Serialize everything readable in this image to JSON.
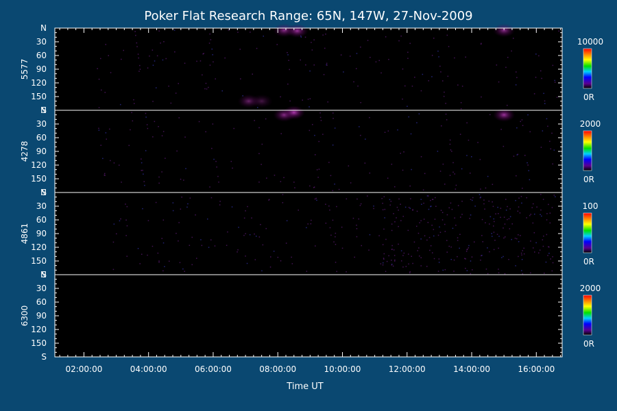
{
  "chart_data": {
    "type": "heatmap",
    "title": "Poker Flat Research Range: 65N, 147W, 27-Nov-2009",
    "xlabel": "Time UT",
    "x_ticks": [
      "02:00:00",
      "04:00:00",
      "06:00:00",
      "08:00:00",
      "10:00:00",
      "12:00:00",
      "14:00:00",
      "16:00:00"
    ],
    "x_tick_hours": [
      2,
      4,
      6,
      8,
      10,
      12,
      14,
      16
    ],
    "xlim_hours": [
      1.1,
      16.8
    ],
    "y_ticks": [
      "N",
      "30",
      "60",
      "90",
      "120",
      "150",
      "S"
    ],
    "y_tick_values": [
      0,
      30,
      60,
      90,
      120,
      150,
      180
    ],
    "ylim": [
      0,
      180
    ],
    "panels": [
      {
        "ylabel": "5577",
        "colorbar_max": "10000",
        "colorbar_min": "0R",
        "features": [
          {
            "hour": 8.2,
            "angle": 5,
            "intensity": 0.8
          },
          {
            "hour": 8.6,
            "angle": 6,
            "intensity": 0.9
          },
          {
            "hour": 15.0,
            "angle": 5,
            "intensity": 0.8
          },
          {
            "hour": 7.1,
            "angle": 160,
            "intensity": 0.6
          },
          {
            "hour": 7.5,
            "angle": 160,
            "intensity": 0.4
          }
        ]
      },
      {
        "ylabel": "4278",
        "colorbar_max": "2000",
        "colorbar_min": "0R",
        "features": [
          {
            "hour": 8.2,
            "angle": 10,
            "intensity": 0.8
          },
          {
            "hour": 8.5,
            "angle": 5,
            "intensity": 1.0
          },
          {
            "hour": 15.0,
            "angle": 10,
            "intensity": 0.9
          }
        ]
      },
      {
        "ylabel": "4861",
        "colorbar_max": "100",
        "colorbar_min": "0R",
        "features": []
      },
      {
        "ylabel": "6300",
        "colorbar_max": "2000",
        "colorbar_min": "0R",
        "features": []
      }
    ]
  }
}
